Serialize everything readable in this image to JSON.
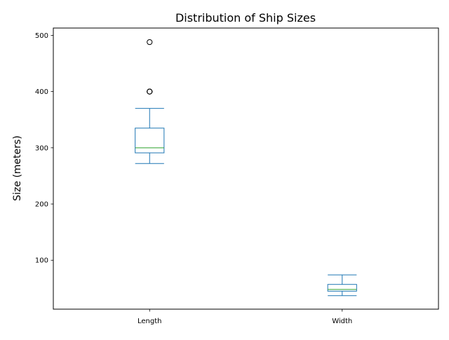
{
  "chart_data": {
    "type": "box",
    "title": "Distribution of Ship Sizes",
    "xlabel": "",
    "ylabel": "Size (meters)",
    "ylim": [
      13,
      513
    ],
    "yticks": [
      100,
      200,
      300,
      400,
      500
    ],
    "grid": false,
    "categories": [
      "Length",
      "Width"
    ],
    "boxes": [
      {
        "name": "Length",
        "whisker_low": 272,
        "q1": 291,
        "median": 300,
        "q3": 335,
        "whisker_high": 370,
        "outliers": [
          400,
          400,
          400,
          488
        ]
      },
      {
        "name": "Width",
        "whisker_low": 37,
        "q1": 45,
        "median": 48,
        "q3": 57,
        "whisker_high": 74,
        "outliers": []
      }
    ],
    "colors": {
      "box": "#1f77b4",
      "median": "#2ca02c",
      "outlier": "#000000"
    }
  }
}
